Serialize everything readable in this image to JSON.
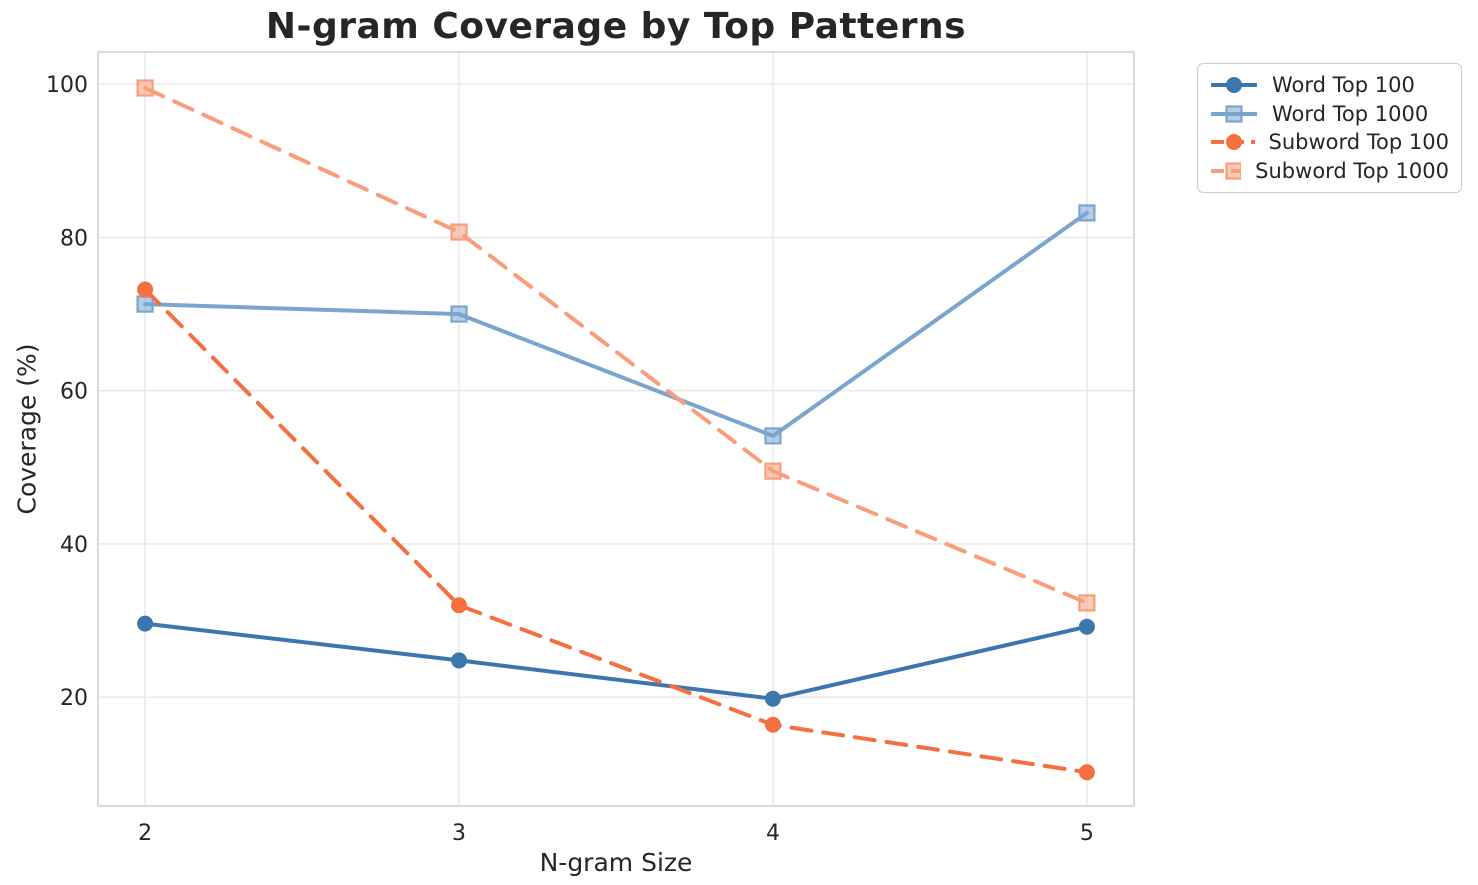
{
  "title": "N-gram Coverage by Top Patterns",
  "chart_data": {
    "type": "line",
    "title": "N-gram Coverage by Top Patterns",
    "xlabel": "N-gram Size",
    "ylabel": "Coverage (%)",
    "x": [
      2,
      3,
      4,
      5
    ],
    "xticks": [
      "2",
      "3",
      "4",
      "5"
    ],
    "yticks": [
      20,
      40,
      60,
      80,
      100
    ],
    "xlim": [
      1.85,
      5.15
    ],
    "ylim": [
      5.8,
      104.2
    ],
    "grid": true,
    "legend_position": "upper-right-outside",
    "series": [
      {
        "name": "Word Top 100",
        "values": [
          29.6,
          24.8,
          19.8,
          29.2
        ],
        "color": "#3B76AE",
        "style": "solid",
        "marker": "circle"
      },
      {
        "name": "Word Top 1000",
        "values": [
          71.3,
          70.0,
          54.1,
          83.2
        ],
        "color": "#7AA5CF",
        "style": "solid",
        "marker": "square"
      },
      {
        "name": "Subword Top 100",
        "values": [
          73.2,
          32.0,
          16.4,
          10.2
        ],
        "color": "#F4703E",
        "style": "dashed",
        "marker": "circle"
      },
      {
        "name": "Subword Top 1000",
        "values": [
          99.5,
          80.7,
          49.5,
          32.3
        ],
        "color": "#F99E7B",
        "style": "dashed",
        "marker": "square"
      }
    ]
  },
  "style": {
    "grid_color": "#e7e7e7",
    "spine_color": "#d2d2d2",
    "tick_color": "#262626",
    "background": "#ffffff"
  }
}
